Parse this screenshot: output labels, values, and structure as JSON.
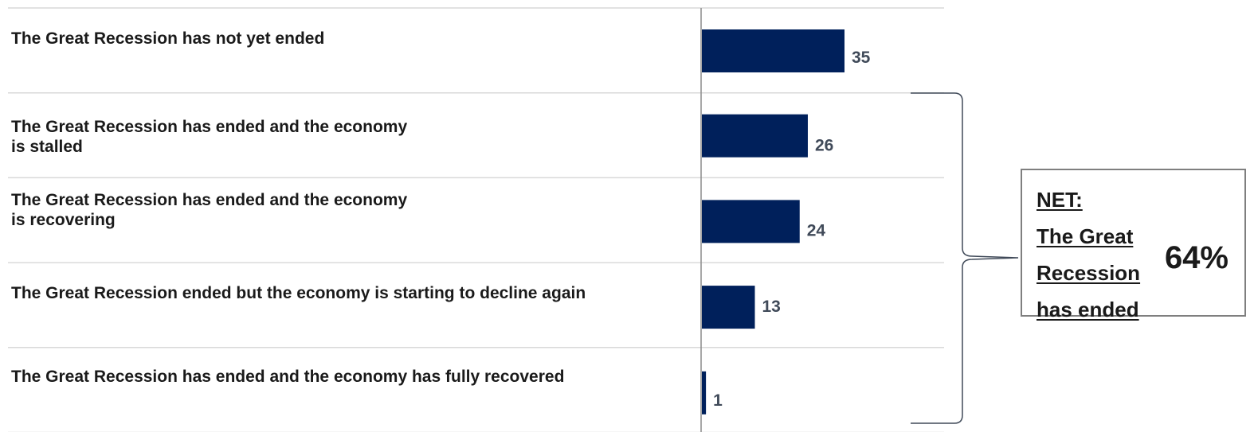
{
  "chart_data": {
    "type": "bar",
    "orientation": "horizontal",
    "categories": [
      "The Great Recession has not yet ended",
      "The Great Recession has ended and the economy\nis stalled",
      "The Great Recession has ended and the economy\nis recovering",
      "The Great Recession ended but the economy is starting to decline again",
      "The Great Recession has ended and the economy has fully recovered"
    ],
    "values": [
      35,
      26,
      24,
      13,
      1
    ],
    "data_labels": [
      "35",
      "26",
      "24",
      "13",
      "1"
    ],
    "xlim": [
      0,
      60
    ],
    "grid": false,
    "bar_color": "#00205b"
  },
  "net_box": {
    "title": "NET:\nThe Great\nRecession\nhas ended",
    "value": "64%"
  }
}
